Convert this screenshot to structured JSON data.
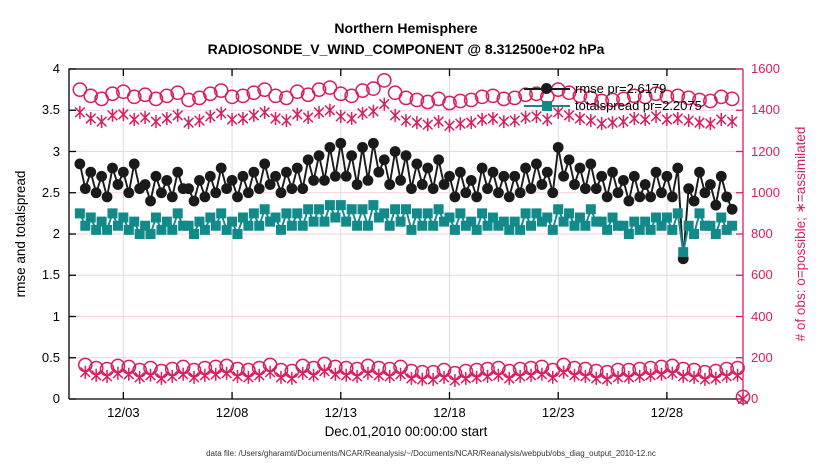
{
  "figure": {
    "caption": "data file: /Users/gharamti/Documents/NCAR/Reanalysis/~/Documents/NCAR/Reanalysis/webpub/obs_diag_output_2010-12.nc"
  },
  "chart_data": {
    "type": "line",
    "title_lines": [
      "Northern Hemisphere",
      "RADIOSONDE_V_WIND_COMPONENT @ 8.312500e+02 hPa"
    ],
    "xlabel": "Dec.01,2010 00:00:00 start",
    "legend_position": "upper-right-inside",
    "x_unit": "days since 2010-12-01 00:00 UTC (4 verification windows per day)",
    "x_start": 0,
    "x_step": 0.25,
    "x_range": [
      -0.5,
      30.5
    ],
    "x_ticks": {
      "values": [
        2,
        7,
        12,
        17,
        22,
        27
      ],
      "labels": [
        "12/03",
        "12/08",
        "12/13",
        "12/18",
        "12/23",
        "12/28"
      ]
    },
    "left_axis": {
      "label": "rmse and totalspread",
      "lim": [
        0,
        4
      ],
      "color": "#000000",
      "ticks": [
        0,
        0.5,
        1,
        1.5,
        2,
        2.5,
        3,
        3.5,
        4
      ],
      "tick_labels": [
        "0",
        "0.5",
        "1",
        "1.5",
        "2",
        "2.5",
        "3",
        "3.5",
        "4"
      ]
    },
    "right_axis": {
      "label": "# of obs: o=possible; ∗=assimilated",
      "lim": [
        0,
        1600
      ],
      "color": "#d81e5c",
      "ticks": [
        0,
        200,
        400,
        600,
        800,
        1000,
        1200,
        1400,
        1600
      ],
      "tick_labels": [
        "0",
        "200",
        "400",
        "600",
        "800",
        "1000",
        "1200",
        "1400",
        "1600"
      ]
    },
    "grid": true,
    "series": [
      {
        "name": "rmse",
        "legend": "rmse pr=2.6179",
        "axis": "left",
        "color": "#1a1a1a",
        "marker": "circle-filled",
        "line": true,
        "values": [
          2.85,
          2.55,
          2.75,
          2.5,
          2.7,
          2.45,
          2.8,
          2.6,
          2.75,
          2.5,
          2.85,
          2.55,
          2.6,
          2.4,
          2.7,
          2.5,
          2.65,
          2.45,
          2.75,
          2.55,
          2.55,
          2.4,
          2.65,
          2.45,
          2.7,
          2.5,
          2.8,
          2.55,
          2.65,
          2.45,
          2.7,
          2.5,
          2.75,
          2.55,
          2.85,
          2.6,
          2.7,
          2.5,
          2.75,
          2.55,
          2.8,
          2.55,
          2.9,
          2.65,
          2.95,
          2.65,
          3.05,
          2.7,
          3.1,
          2.7,
          2.95,
          2.6,
          3.05,
          2.65,
          3.1,
          2.75,
          2.9,
          2.6,
          3.0,
          2.65,
          2.95,
          2.55,
          2.85,
          2.6,
          2.8,
          2.55,
          2.9,
          2.6,
          2.7,
          2.45,
          2.75,
          2.5,
          2.65,
          2.45,
          2.8,
          2.55,
          2.75,
          2.5,
          2.7,
          2.45,
          2.7,
          2.5,
          2.8,
          2.55,
          2.85,
          2.6,
          2.75,
          2.5,
          3.05,
          2.7,
          2.9,
          2.6,
          2.8,
          2.55,
          2.85,
          2.55,
          2.7,
          2.45,
          2.75,
          2.5,
          2.65,
          2.4,
          2.7,
          2.45,
          2.6,
          2.45,
          2.75,
          2.5,
          2.7,
          2.45,
          2.8,
          1.7,
          2.55,
          2.4,
          2.75,
          2.5,
          2.6,
          2.35,
          2.7,
          2.45,
          2.3,
          null,
          null
        ]
      },
      {
        "name": "totalspread",
        "legend": "totalspread pr=2.2075",
        "axis": "left",
        "color": "#128a89",
        "marker": "square-filled",
        "line": true,
        "values": [
          2.25,
          2.1,
          2.2,
          2.05,
          2.15,
          2.05,
          2.25,
          2.1,
          2.2,
          2.05,
          2.15,
          2.0,
          2.1,
          2.0,
          2.2,
          2.05,
          2.15,
          2.05,
          2.25,
          2.1,
          2.1,
          2.0,
          2.15,
          2.05,
          2.2,
          2.1,
          2.25,
          2.05,
          2.15,
          2.0,
          2.2,
          2.1,
          2.25,
          2.1,
          2.3,
          2.15,
          2.2,
          2.05,
          2.25,
          2.1,
          2.25,
          2.1,
          2.3,
          2.15,
          2.3,
          2.15,
          2.35,
          2.2,
          2.35,
          2.15,
          2.3,
          2.1,
          2.3,
          2.1,
          2.35,
          2.2,
          2.25,
          2.1,
          2.3,
          2.15,
          2.3,
          2.05,
          2.25,
          2.1,
          2.25,
          2.1,
          2.3,
          2.15,
          2.2,
          2.05,
          2.25,
          2.1,
          2.15,
          2.05,
          2.25,
          2.1,
          2.2,
          2.1,
          2.15,
          2.05,
          2.15,
          2.05,
          2.25,
          2.1,
          2.25,
          2.15,
          2.2,
          2.05,
          2.3,
          2.15,
          2.25,
          2.1,
          2.2,
          2.1,
          2.3,
          2.15,
          2.15,
          2.05,
          2.2,
          2.1,
          2.1,
          2.0,
          2.15,
          2.05,
          2.15,
          2.05,
          2.2,
          2.1,
          2.2,
          2.05,
          2.25,
          1.78,
          2.1,
          2.0,
          2.25,
          2.1,
          2.1,
          2.0,
          2.2,
          2.05,
          2.1,
          null,
          null
        ]
      },
      {
        "name": "obs-possible",
        "legend": "o=possible",
        "axis": "right",
        "color": "#d81e5c",
        "marker": "circle-open",
        "line": false,
        "values": [
          1500,
          165,
          1470,
          150,
          1455,
          145,
          1480,
          160,
          1490,
          155,
          1465,
          140,
          1475,
          150,
          1455,
          135,
          1470,
          145,
          1485,
          155,
          1450,
          140,
          1460,
          150,
          1480,
          155,
          1495,
          160,
          1465,
          145,
          1470,
          140,
          1485,
          150,
          1500,
          165,
          1470,
          140,
          1460,
          135,
          1490,
          160,
          1475,
          150,
          1500,
          170,
          1510,
          155,
          1480,
          150,
          1470,
          145,
          1495,
          160,
          1505,
          150,
          1545,
          145,
          1485,
          155,
          1460,
          135,
          1450,
          130,
          1440,
          130,
          1455,
          140,
          1435,
          125,
          1445,
          135,
          1450,
          140,
          1465,
          145,
          1470,
          150,
          1455,
          135,
          1460,
          145,
          1475,
          150,
          1480,
          155,
          1465,
          140,
          1500,
          165,
          1485,
          150,
          1470,
          145,
          1460,
          135,
          1445,
          130,
          1450,
          140,
          1455,
          140,
          1470,
          145,
          1465,
          150,
          1480,
          155,
          1465,
          160,
          1470,
          145,
          1460,
          140,
          1450,
          130,
          1445,
          135,
          1465,
          145,
          1455,
          150,
          10
        ]
      },
      {
        "name": "obs-assimilated",
        "legend": "*=assimilated",
        "axis": "right",
        "color": "#d81e5c",
        "marker": "asterisk",
        "line": false,
        "values": [
          1390,
          130,
          1360,
          115,
          1345,
          110,
          1375,
          125,
          1380,
          120,
          1355,
          105,
          1365,
          115,
          1345,
          100,
          1360,
          110,
          1375,
          120,
          1340,
          105,
          1350,
          115,
          1370,
          120,
          1385,
          125,
          1355,
          110,
          1360,
          105,
          1375,
          115,
          1390,
          130,
          1360,
          105,
          1350,
          100,
          1380,
          125,
          1365,
          115,
          1390,
          135,
          1400,
          120,
          1370,
          115,
          1360,
          110,
          1385,
          125,
          1395,
          115,
          1430,
          110,
          1375,
          120,
          1350,
          100,
          1340,
          95,
          1330,
          95,
          1345,
          105,
          1325,
          90,
          1335,
          100,
          1340,
          105,
          1355,
          110,
          1360,
          115,
          1345,
          100,
          1350,
          110,
          1365,
          115,
          1370,
          120,
          1355,
          105,
          1390,
          130,
          1375,
          115,
          1360,
          110,
          1350,
          100,
          1335,
          95,
          1340,
          105,
          1345,
          105,
          1360,
          110,
          1355,
          115,
          1370,
          120,
          1355,
          125,
          1360,
          110,
          1350,
          105,
          1340,
          95,
          1335,
          100,
          1355,
          110,
          1345,
          115,
          0
        ]
      }
    ]
  }
}
